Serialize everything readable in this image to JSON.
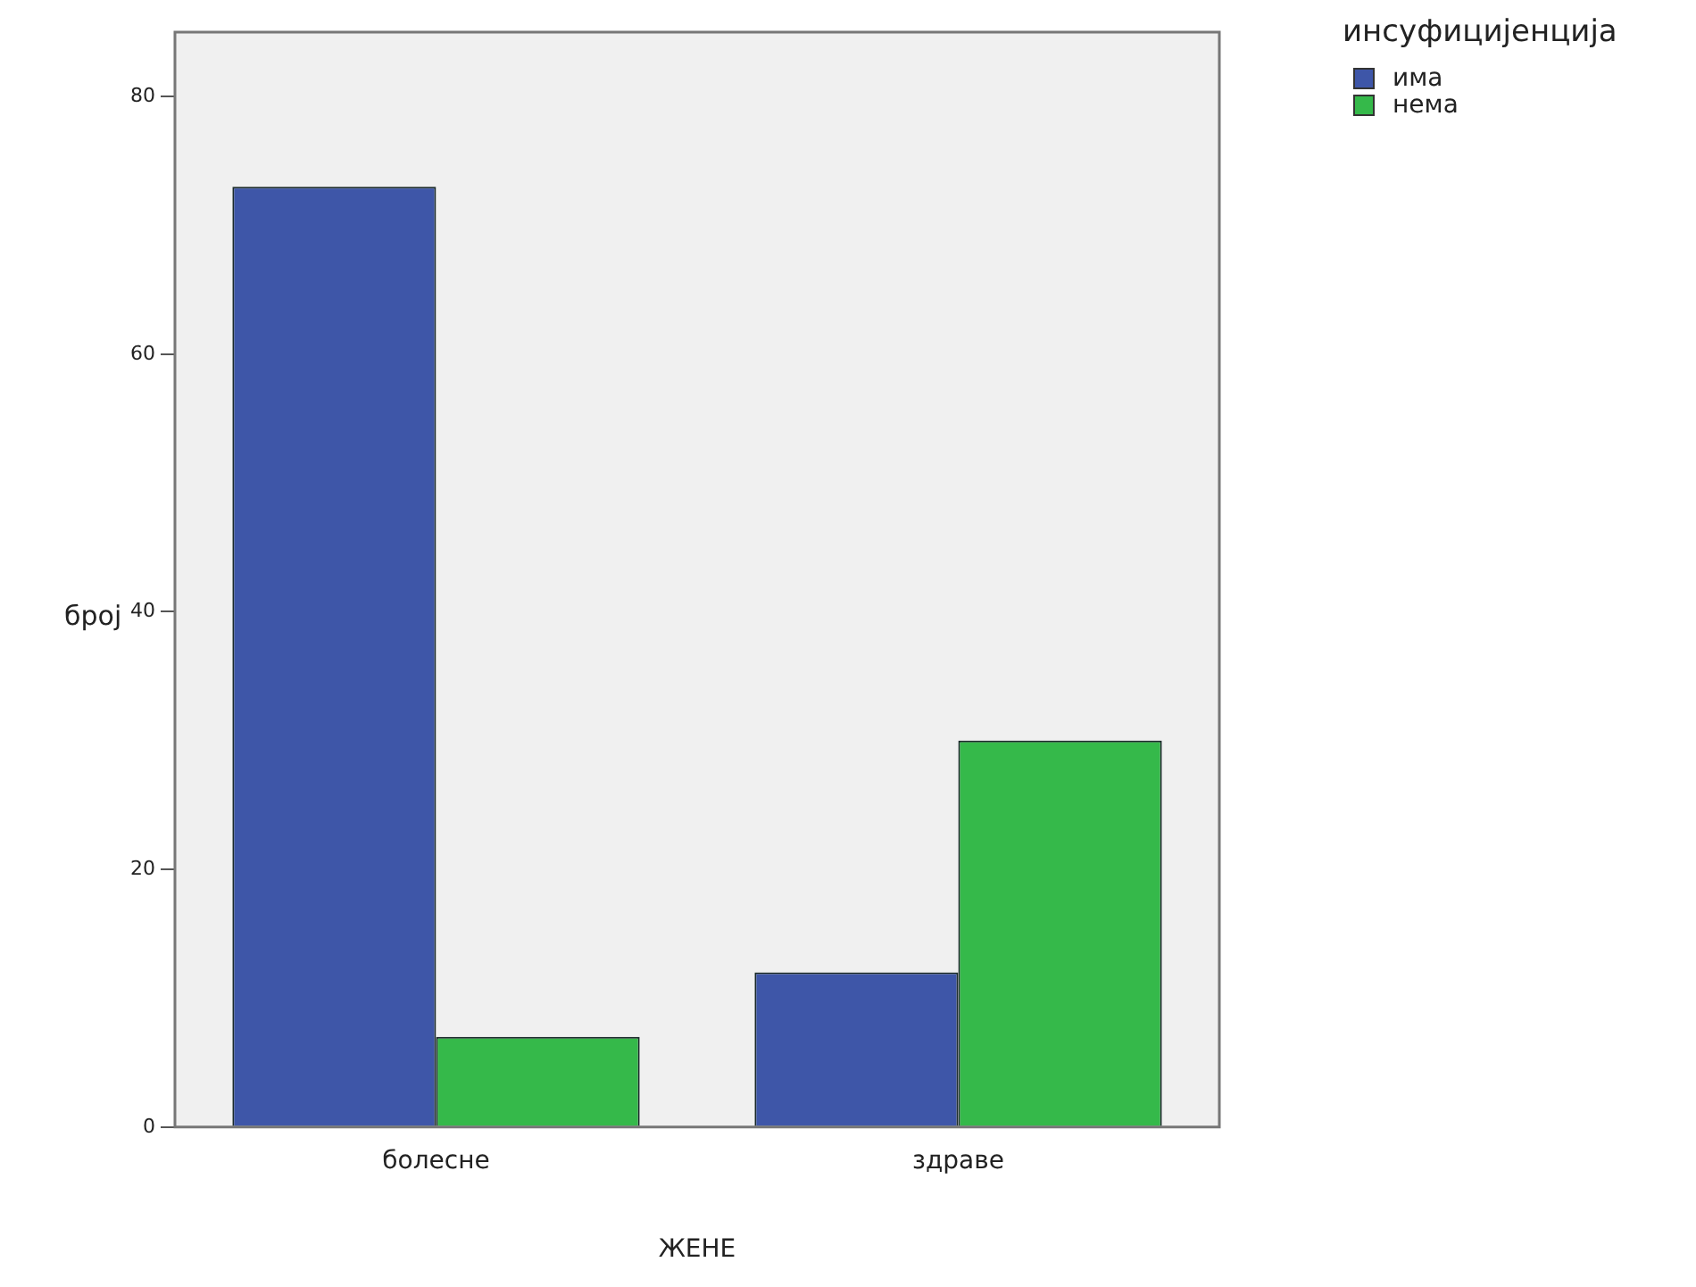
{
  "chart_data": {
    "type": "bar",
    "xlabel": "ЖЕНЕ",
    "ylabel": "број",
    "legend_title": "инсуфицијенција",
    "legend": "top right",
    "grid": false,
    "categories": [
      "болесне",
      "здраве"
    ],
    "series": [
      {
        "name": "има",
        "color": "#3e56a8",
        "values": [
          73,
          12
        ]
      },
      {
        "name": "нема",
        "color": "#35b94a",
        "values": [
          7,
          30
        ]
      }
    ],
    "ylim": [
      0,
      85
    ],
    "yticks": [
      0,
      20,
      40,
      60,
      80
    ]
  }
}
